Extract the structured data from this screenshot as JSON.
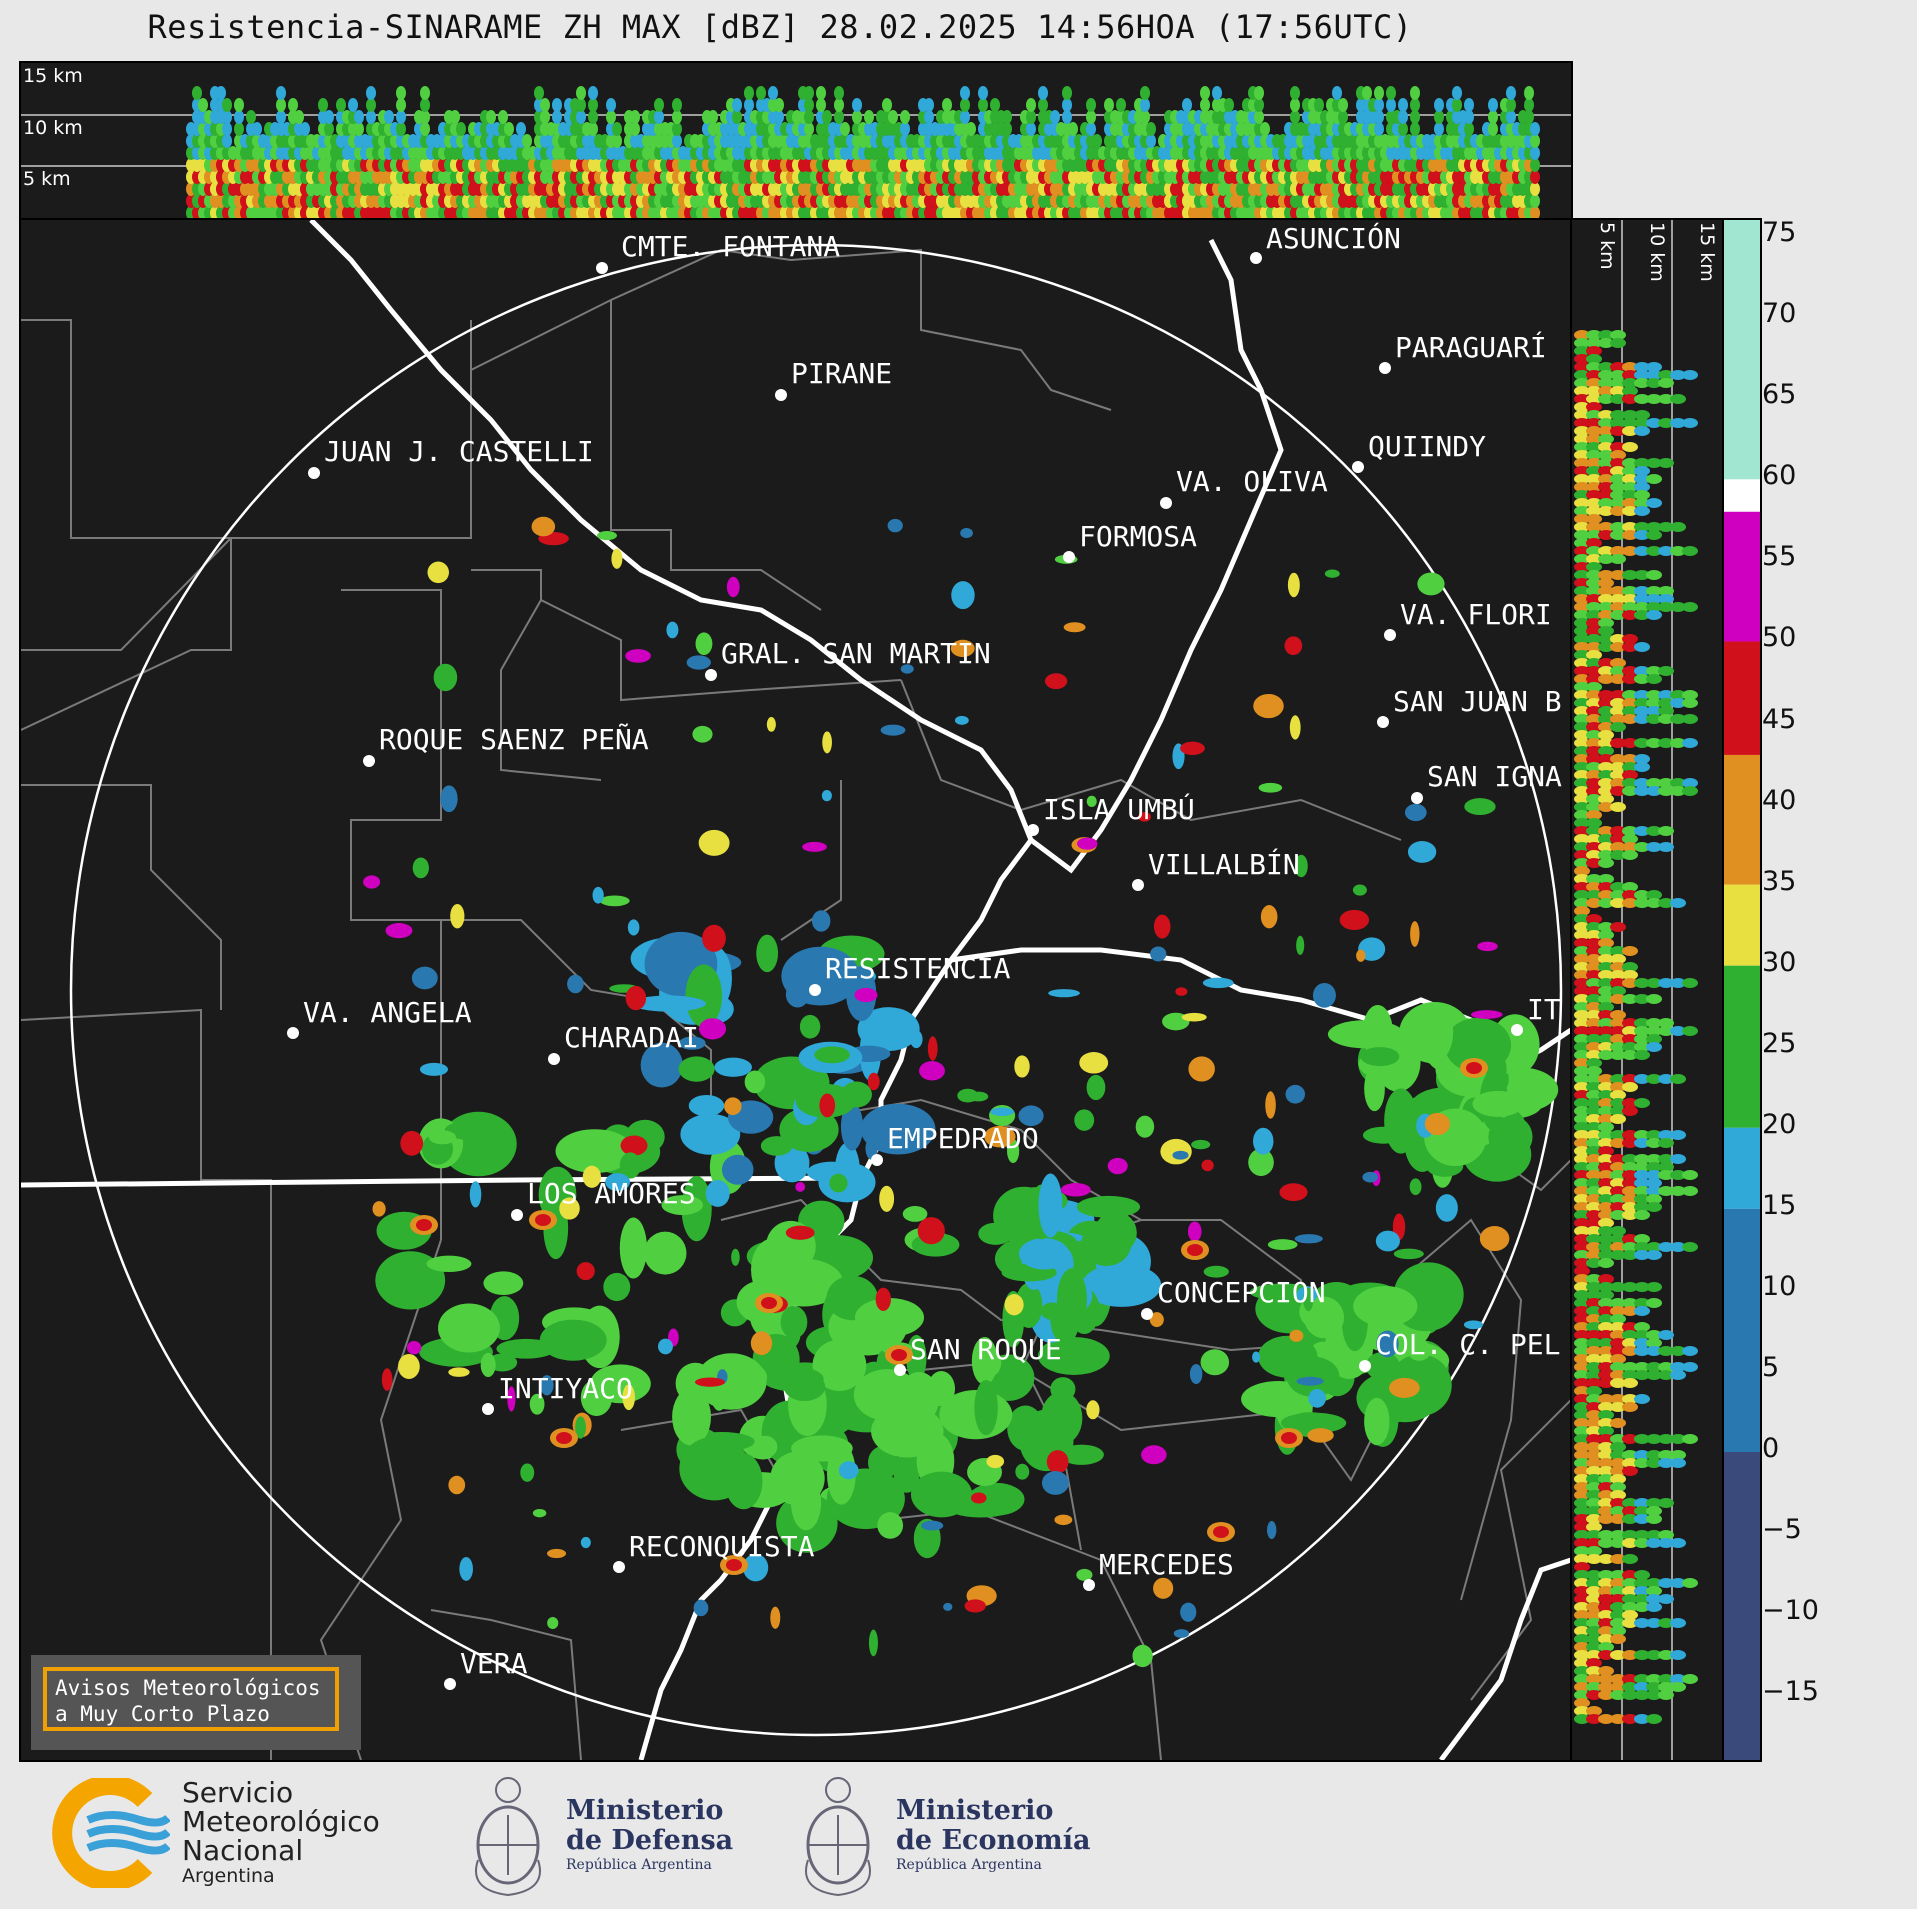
{
  "title": "Resistencia-SINARAME ZH MAX [dBZ] 28.02.2025 14:56HOA (17:56UTC)",
  "top_panel": {
    "altitude_labels": [
      "15 km",
      "10 km",
      "5 km"
    ]
  },
  "side_panel": {
    "altitude_labels": [
      "5 km",
      "10 km",
      "15 km"
    ]
  },
  "colorbar": {
    "unit": "dBZ",
    "ticks": [
      "75",
      "70",
      "65",
      "60",
      "55",
      "50",
      "45",
      "40",
      "35",
      "30",
      "25",
      "20",
      "15",
      "10",
      "5",
      "0",
      "−5",
      "−10",
      "−15"
    ],
    "bands": [
      {
        "from": 60,
        "to": 76,
        "color": "#a0e6d0"
      },
      {
        "from": 58,
        "to": 60,
        "color": "#ffffff"
      },
      {
        "from": 50,
        "to": 58,
        "color": "#d000c0"
      },
      {
        "from": 43,
        "to": 50,
        "color": "#d0101a"
      },
      {
        "from": 35,
        "to": 43,
        "color": "#e09020"
      },
      {
        "from": 30,
        "to": 35,
        "color": "#e8e040"
      },
      {
        "from": 20,
        "to": 30,
        "color": "#30b030"
      },
      {
        "from": 15,
        "to": 20,
        "color": "#30a8d8"
      },
      {
        "from": 0,
        "to": 15,
        "color": "#2a78b0"
      },
      {
        "from": -19,
        "to": 0,
        "color": "#3a4a7a"
      }
    ]
  },
  "cities": [
    {
      "name": "CMTE. FONTANA"
    },
    {
      "name": "ASUNCIÓN"
    },
    {
      "name": "PARAGUARÍ"
    },
    {
      "name": "PIRANE"
    },
    {
      "name": "JUAN J. CASTELLI"
    },
    {
      "name": "VA. OLIVA"
    },
    {
      "name": "QUIINDY"
    },
    {
      "name": "FORMOSA"
    },
    {
      "name": "VA. FLORI"
    },
    {
      "name": "GRAL. SAN MARTIN"
    },
    {
      "name": "SAN JUAN B"
    },
    {
      "name": "ROQUE SAENZ PEÑA"
    },
    {
      "name": "SAN IGNA"
    },
    {
      "name": "ISLA UMBÚ"
    },
    {
      "name": "VILLALBÍN"
    },
    {
      "name": "RESISTENCIA"
    },
    {
      "name": "VA. ANGELA"
    },
    {
      "name": "CHARADAI"
    },
    {
      "name": "IT"
    },
    {
      "name": "EMPEDRADO"
    },
    {
      "name": "LOS AMORES"
    },
    {
      "name": "CONCEPCION"
    },
    {
      "name": "SAN ROQUE"
    },
    {
      "name": "COL. C. PEL"
    },
    {
      "name": "INTIYACO"
    },
    {
      "name": "RECONQUISTA"
    },
    {
      "name": "MERCEDES"
    },
    {
      "name": "VERA"
    }
  ],
  "notice": {
    "line1": "Avisos Meteorológicos",
    "line2": "a Muy Corto Plazo"
  },
  "logos": {
    "smn": {
      "line1": "Servicio",
      "line2": "Meteorológico",
      "line3": "Nacional",
      "line4": "Argentina"
    },
    "defensa": {
      "line1": "Ministerio",
      "line2": "de Defensa",
      "line3": "República Argentina"
    },
    "economia": {
      "line1": "Ministerio",
      "line2": "de Economía",
      "line3": "República Argentina"
    }
  },
  "colors": {
    "background": "#e8e8e8",
    "panel": "#1b1b1b",
    "smn_orange": "#f5a500",
    "smn_blue": "#3aa0d8"
  }
}
